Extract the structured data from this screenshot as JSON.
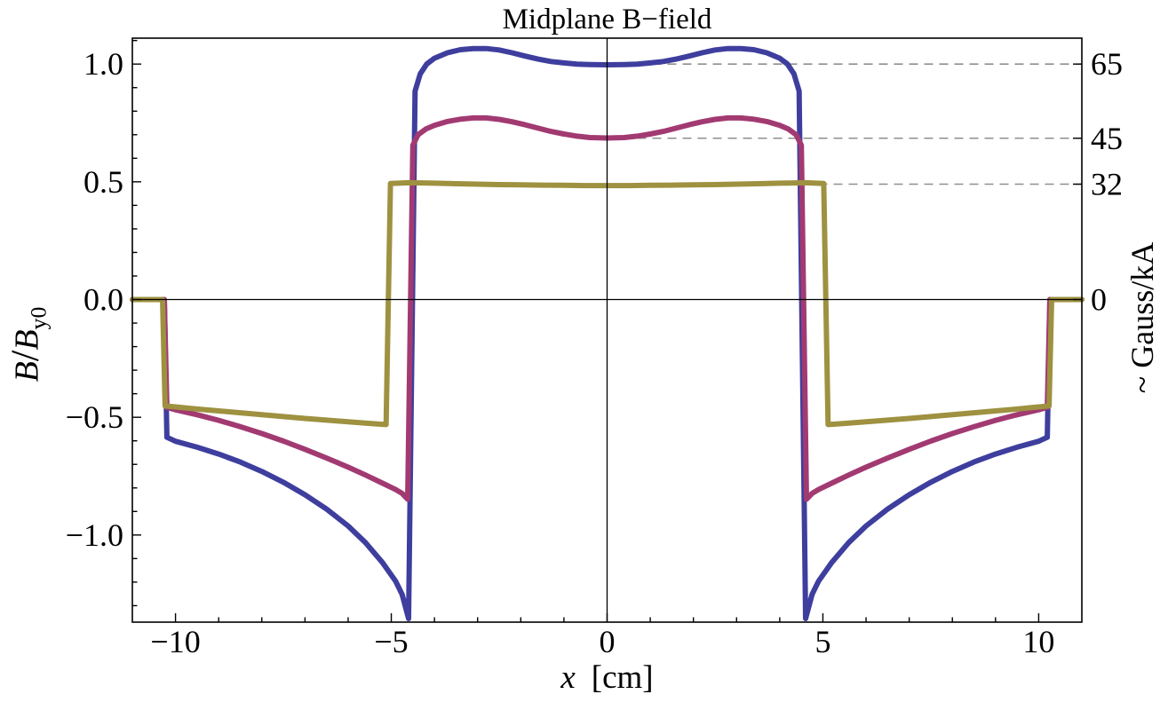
{
  "title": "Midplane B−field",
  "axes": {
    "xlabel": {
      "var": "x",
      "unit": "[cm]"
    },
    "ylabel_left": {
      "b1": "B",
      "slash": "/",
      "b2": "B",
      "sub": "y0"
    },
    "ylabel_right": "~ Gauss/kA"
  },
  "chart_data": {
    "type": "line",
    "title": "Midplane B−field",
    "xlabel": "x [cm]",
    "ylabel": "B/B_y0",
    "ylabel_right": "~ Gauss/kA",
    "xlim": [
      -11,
      11
    ],
    "ylim": [
      -1.37,
      1.11
    ],
    "grid": false,
    "frame": true,
    "axis_color": "#000000",
    "x_major_ticks": [
      {
        "x": -10,
        "label": "−10"
      },
      {
        "x": -5,
        "label": "−5"
      },
      {
        "x": 0,
        "label": "0"
      },
      {
        "x": 5,
        "label": "5"
      },
      {
        "x": 10,
        "label": "10"
      }
    ],
    "x_minor_step": 1,
    "y_major_ticks": [
      {
        "y": 1.0,
        "label": "1.0"
      },
      {
        "y": 0.5,
        "label": "0.5"
      },
      {
        "y": 0.0,
        "label": "0.0"
      },
      {
        "y": -0.5,
        "label": "−0.5"
      },
      {
        "y": -1.0,
        "label": "−1.0"
      }
    ],
    "y_minor_step": 0.1,
    "right_ticks": [
      {
        "y": 1.0,
        "label": "65"
      },
      {
        "y": 0.685,
        "label": "45"
      },
      {
        "y": 0.49,
        "label": "32"
      },
      {
        "y": 0.0,
        "label": "0"
      }
    ],
    "reference_lines": {
      "color": "#8f8f8f",
      "dash": "10 7",
      "from_x": 0,
      "to_x": 11,
      "levels": [
        1.0,
        0.685,
        0.49
      ]
    },
    "series": [
      {
        "name": "65",
        "right_axis_value": "65 Gauss/kA",
        "color": "#3e3e9e",
        "points": [
          [
            -11,
            0
          ],
          [
            -10.26,
            0
          ],
          [
            -10.2,
            -0.585
          ],
          [
            -10.0,
            -0.602
          ],
          [
            -9.5,
            -0.627
          ],
          [
            -9.0,
            -0.656
          ],
          [
            -8.5,
            -0.69
          ],
          [
            -8.0,
            -0.73
          ],
          [
            -7.5,
            -0.776
          ],
          [
            -7.0,
            -0.829
          ],
          [
            -6.5,
            -0.89
          ],
          [
            -6.0,
            -0.962
          ],
          [
            -5.6,
            -1.032
          ],
          [
            -5.2,
            -1.118
          ],
          [
            -4.9,
            -1.196
          ],
          [
            -4.75,
            -1.252
          ],
          [
            -4.6,
            -1.355
          ],
          [
            -4.45,
            0.885
          ],
          [
            -4.33,
            0.958
          ],
          [
            -4.18,
            1.0
          ],
          [
            -4.0,
            1.025
          ],
          [
            -3.7,
            1.048
          ],
          [
            -3.4,
            1.061
          ],
          [
            -3.1,
            1.066
          ],
          [
            -2.8,
            1.066
          ],
          [
            -2.5,
            1.06
          ],
          [
            -2.2,
            1.048
          ],
          [
            -1.9,
            1.034
          ],
          [
            -1.6,
            1.021
          ],
          [
            -1.3,
            1.011
          ],
          [
            -1.0,
            1.005
          ],
          [
            -0.7,
            1.0
          ],
          [
            -0.4,
            0.998
          ],
          [
            0.0,
            0.997
          ],
          [
            0.4,
            0.998
          ],
          [
            0.7,
            1.0
          ],
          [
            1.0,
            1.005
          ],
          [
            1.3,
            1.011
          ],
          [
            1.6,
            1.021
          ],
          [
            1.9,
            1.034
          ],
          [
            2.2,
            1.048
          ],
          [
            2.5,
            1.06
          ],
          [
            2.8,
            1.066
          ],
          [
            3.1,
            1.066
          ],
          [
            3.4,
            1.061
          ],
          [
            3.7,
            1.048
          ],
          [
            4.0,
            1.025
          ],
          [
            4.18,
            1.0
          ],
          [
            4.33,
            0.958
          ],
          [
            4.45,
            0.885
          ],
          [
            4.6,
            -1.355
          ],
          [
            4.75,
            -1.252
          ],
          [
            4.9,
            -1.196
          ],
          [
            5.2,
            -1.118
          ],
          [
            5.6,
            -1.032
          ],
          [
            6.0,
            -0.962
          ],
          [
            6.5,
            -0.89
          ],
          [
            7.0,
            -0.829
          ],
          [
            7.5,
            -0.776
          ],
          [
            8.0,
            -0.73
          ],
          [
            8.5,
            -0.69
          ],
          [
            9.0,
            -0.656
          ],
          [
            9.5,
            -0.627
          ],
          [
            10.0,
            -0.602
          ],
          [
            10.2,
            -0.585
          ],
          [
            10.26,
            0
          ],
          [
            11,
            0
          ]
        ]
      },
      {
        "name": "45",
        "right_axis_value": "45 Gauss/kA",
        "color": "#a23a72",
        "points": [
          [
            -11,
            0
          ],
          [
            -10.26,
            0
          ],
          [
            -10.2,
            -0.458
          ],
          [
            -10.0,
            -0.468
          ],
          [
            -9.5,
            -0.489
          ],
          [
            -9.0,
            -0.513
          ],
          [
            -8.5,
            -0.54
          ],
          [
            -8.0,
            -0.569
          ],
          [
            -7.5,
            -0.601
          ],
          [
            -7.0,
            -0.636
          ],
          [
            -6.5,
            -0.673
          ],
          [
            -6.0,
            -0.712
          ],
          [
            -5.6,
            -0.745
          ],
          [
            -5.2,
            -0.78
          ],
          [
            -4.9,
            -0.807
          ],
          [
            -4.75,
            -0.823
          ],
          [
            -4.62,
            -0.848
          ],
          [
            -4.5,
            0.655
          ],
          [
            -4.38,
            0.7
          ],
          [
            -4.2,
            0.724
          ],
          [
            -4.0,
            0.74
          ],
          [
            -3.7,
            0.756
          ],
          [
            -3.4,
            0.766
          ],
          [
            -3.1,
            0.771
          ],
          [
            -2.8,
            0.771
          ],
          [
            -2.5,
            0.765
          ],
          [
            -2.2,
            0.755
          ],
          [
            -1.9,
            0.742
          ],
          [
            -1.6,
            0.728
          ],
          [
            -1.3,
            0.714
          ],
          [
            -1.0,
            0.703
          ],
          [
            -0.7,
            0.694
          ],
          [
            -0.4,
            0.688
          ],
          [
            0.0,
            0.686
          ],
          [
            0.4,
            0.688
          ],
          [
            0.7,
            0.694
          ],
          [
            1.0,
            0.703
          ],
          [
            1.3,
            0.714
          ],
          [
            1.6,
            0.728
          ],
          [
            1.9,
            0.742
          ],
          [
            2.2,
            0.755
          ],
          [
            2.5,
            0.765
          ],
          [
            2.8,
            0.771
          ],
          [
            3.1,
            0.771
          ],
          [
            3.4,
            0.766
          ],
          [
            3.7,
            0.756
          ],
          [
            4.0,
            0.74
          ],
          [
            4.2,
            0.724
          ],
          [
            4.38,
            0.7
          ],
          [
            4.5,
            0.655
          ],
          [
            4.62,
            -0.848
          ],
          [
            4.75,
            -0.823
          ],
          [
            4.9,
            -0.807
          ],
          [
            5.2,
            -0.78
          ],
          [
            5.6,
            -0.745
          ],
          [
            6.0,
            -0.712
          ],
          [
            6.5,
            -0.673
          ],
          [
            7.0,
            -0.636
          ],
          [
            7.5,
            -0.601
          ],
          [
            8.0,
            -0.569
          ],
          [
            8.5,
            -0.54
          ],
          [
            9.0,
            -0.513
          ],
          [
            9.5,
            -0.489
          ],
          [
            10.0,
            -0.468
          ],
          [
            10.2,
            -0.458
          ],
          [
            10.26,
            0
          ],
          [
            11,
            0
          ]
        ]
      },
      {
        "name": "32",
        "right_axis_value": "32 Gauss/kA",
        "color": "#9e9140",
        "points": [
          [
            -11,
            0
          ],
          [
            -10.3,
            0
          ],
          [
            -10.24,
            -0.452
          ],
          [
            -10.0,
            -0.456
          ],
          [
            -9.5,
            -0.465
          ],
          [
            -9.0,
            -0.473
          ],
          [
            -8.5,
            -0.481
          ],
          [
            -8.0,
            -0.489
          ],
          [
            -7.5,
            -0.497
          ],
          [
            -7.0,
            -0.505
          ],
          [
            -6.5,
            -0.512
          ],
          [
            -6.0,
            -0.519
          ],
          [
            -5.5,
            -0.526
          ],
          [
            -5.12,
            -0.531
          ],
          [
            -5.02,
            0.493
          ],
          [
            -4.6,
            0.496
          ],
          [
            -4.0,
            0.494
          ],
          [
            -3.5,
            0.492
          ],
          [
            -3.0,
            0.49
          ],
          [
            -2.5,
            0.488
          ],
          [
            -2.0,
            0.487
          ],
          [
            -1.5,
            0.486
          ],
          [
            -1.0,
            0.485
          ],
          [
            -0.5,
            0.484
          ],
          [
            0.0,
            0.484
          ],
          [
            0.5,
            0.484
          ],
          [
            1.0,
            0.485
          ],
          [
            1.5,
            0.486
          ],
          [
            2.0,
            0.487
          ],
          [
            2.5,
            0.488
          ],
          [
            3.0,
            0.49
          ],
          [
            3.5,
            0.492
          ],
          [
            4.0,
            0.494
          ],
          [
            4.6,
            0.496
          ],
          [
            5.02,
            0.493
          ],
          [
            5.12,
            -0.531
          ],
          [
            5.5,
            -0.526
          ],
          [
            6.0,
            -0.519
          ],
          [
            6.5,
            -0.512
          ],
          [
            7.0,
            -0.505
          ],
          [
            7.5,
            -0.497
          ],
          [
            8.0,
            -0.489
          ],
          [
            8.5,
            -0.481
          ],
          [
            9.0,
            -0.473
          ],
          [
            9.5,
            -0.465
          ],
          [
            10.0,
            -0.456
          ],
          [
            10.24,
            -0.452
          ],
          [
            10.3,
            0
          ],
          [
            11,
            0
          ]
        ]
      }
    ]
  }
}
